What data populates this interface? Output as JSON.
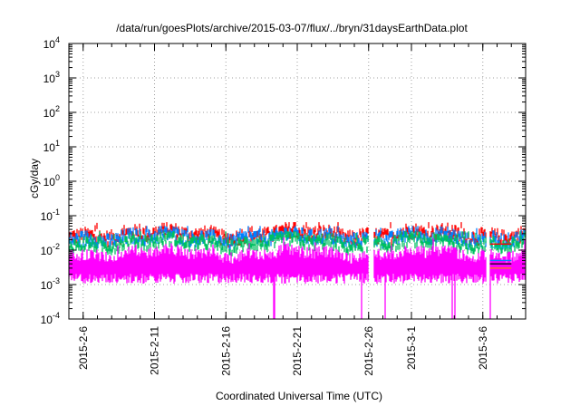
{
  "chart_data": {
    "type": "line",
    "title": "/data/run/goesPlots/archive/2015-03-07/flux/../bryn/31daysEarthData.plot",
    "xlabel": "Coordinated Universal Time (UTC)",
    "ylabel": "cGy/day",
    "x_axis": {
      "type": "date",
      "range": [
        "2015-02-05",
        "2015-03-09"
      ],
      "ticks": [
        {
          "date": "2015-02-06",
          "label": "2015-2-6"
        },
        {
          "date": "2015-02-11",
          "label": "2015-2-11"
        },
        {
          "date": "2015-02-16",
          "label": "2015-2-16"
        },
        {
          "date": "2015-02-21",
          "label": "2015-2-21"
        },
        {
          "date": "2015-02-26",
          "label": "2015-2-26"
        },
        {
          "date": "2015-03-01",
          "label": "2015-3-1"
        },
        {
          "date": "2015-03-06",
          "label": "2015-3-6"
        }
      ]
    },
    "y_axis": {
      "scale": "log",
      "range": [
        0.0001,
        10000
      ],
      "ticks": [
        {
          "value": 0.0001,
          "base": "10",
          "exp": "-4"
        },
        {
          "value": 0.001,
          "base": "10",
          "exp": "-3"
        },
        {
          "value": 0.01,
          "base": "10",
          "exp": "-2"
        },
        {
          "value": 0.1,
          "base": "10",
          "exp": "-1"
        },
        {
          "value": 1,
          "base": "10",
          "exp": "0"
        },
        {
          "value": 10,
          "base": "10",
          "exp": "1"
        },
        {
          "value": 100,
          "base": "10",
          "exp": "2"
        },
        {
          "value": 1000,
          "base": "10",
          "exp": "3"
        },
        {
          "value": 10000,
          "base": "10",
          "exp": "4"
        }
      ]
    },
    "grid": true,
    "legend": "none",
    "data_gaps": [
      [
        "2015-02-26",
        "2015-02-26T08:00"
      ],
      [
        "2015-03-06T06:00",
        "2015-03-06T12:00"
      ]
    ],
    "series": [
      {
        "color": "#ff0000",
        "typical_value": 0.035,
        "spike_max": 0.065
      },
      {
        "color": "#0080ff",
        "typical_value": 0.028,
        "spike_max": 0.05
      },
      {
        "color": "#00c060",
        "typical_value": 0.02,
        "spike_max": 0.035
      },
      {
        "color": "#ff00ff",
        "typical_value": 0.008,
        "floor": 0.0015,
        "dropouts_to": 0.0001
      }
    ]
  }
}
